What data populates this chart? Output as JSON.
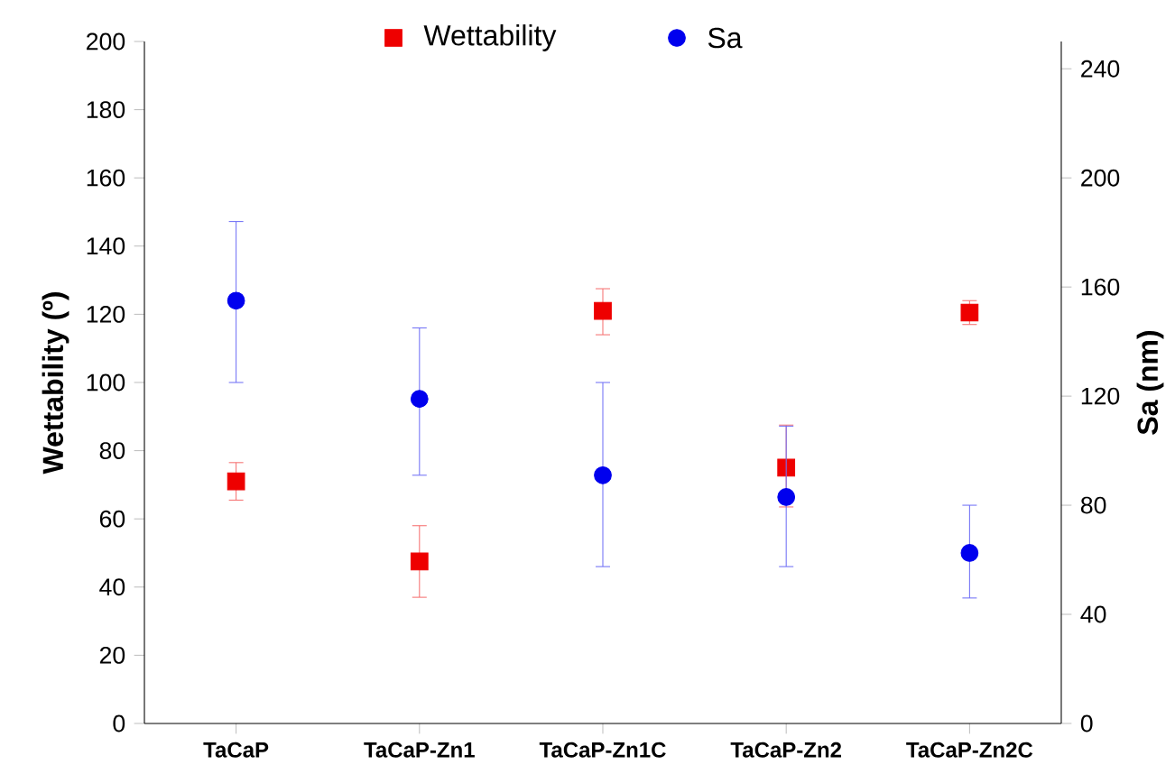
{
  "chart_data": {
    "type": "scatter",
    "ylabel": "Wettability (º)",
    "y2label": "Sa (nm)",
    "categories": [
      "TaCaP",
      "TaCaP-Zn1",
      "TaCaP-Zn1C",
      "TaCaP-Zn2",
      "TaCaP-Zn2C"
    ],
    "series": [
      {
        "name": "Wettability",
        "color": "#ee0000",
        "marker": "square",
        "values": [
          71,
          47.5,
          121,
          75,
          120.5
        ],
        "errors": [
          [
            65.5,
            76.5
          ],
          [
            37,
            58
          ],
          [
            114,
            127.5
          ],
          [
            63.5,
            87.5
          ],
          [
            117,
            124
          ]
        ]
      },
      {
        "name": "Sa",
        "color": "#0000ee",
        "marker": "circle",
        "axis": "y2",
        "values": [
          155,
          119,
          91,
          83,
          62.5
        ],
        "errors": [
          [
            125,
            184
          ],
          [
            91,
            145
          ],
          [
            57.5,
            125
          ],
          [
            57.5,
            109
          ],
          [
            46,
            80
          ]
        ]
      }
    ],
    "ylim": [
      0,
      200
    ],
    "yticks": [
      0,
      20,
      40,
      60,
      80,
      100,
      120,
      140,
      160,
      180,
      200
    ],
    "y2lim": [
      0,
      250
    ],
    "y2ticks": [
      0,
      40,
      80,
      120,
      160,
      200,
      240
    ],
    "legend": "top"
  }
}
